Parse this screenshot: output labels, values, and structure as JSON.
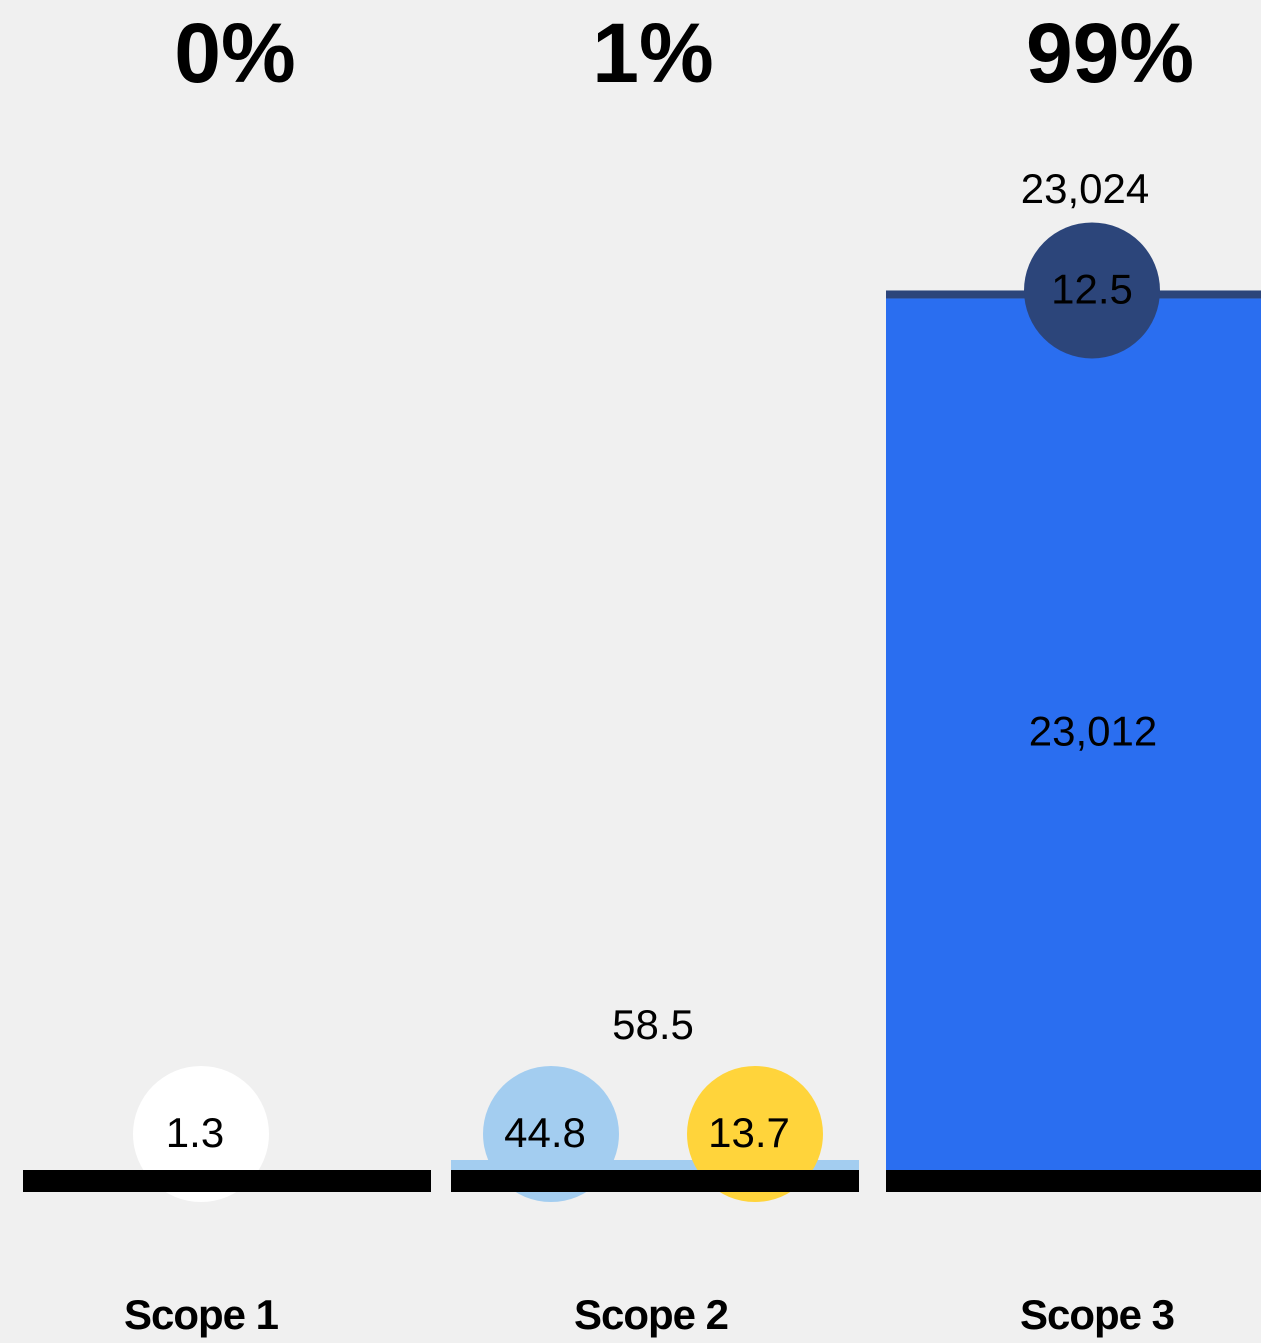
{
  "chart_data": {
    "type": "bar",
    "stacked": true,
    "categories": [
      "Scope 1",
      "Scope 2",
      "Scope 3"
    ],
    "shares": [
      0,
      1,
      99
    ],
    "share_labels": [
      "0%",
      "1%",
      "99%"
    ],
    "totals": [
      null,
      58.5,
      23024
    ],
    "total_labels": [
      null,
      "58.5",
      "23,024"
    ],
    "series": [
      {
        "color": "#ffffff",
        "values": [
          1.3,
          null,
          null
        ]
      },
      {
        "color": "#a3cdf0",
        "values": [
          null,
          44.8,
          null
        ]
      },
      {
        "color": "#ffd43b",
        "values": [
          null,
          13.7,
          null
        ]
      },
      {
        "color": "#2a6ef0",
        "values": [
          null,
          null,
          23012
        ],
        "value_labels": [
          null,
          null,
          "23,012"
        ]
      },
      {
        "color": "#2c457a",
        "values": [
          null,
          null,
          12.5
        ]
      }
    ]
  }
}
